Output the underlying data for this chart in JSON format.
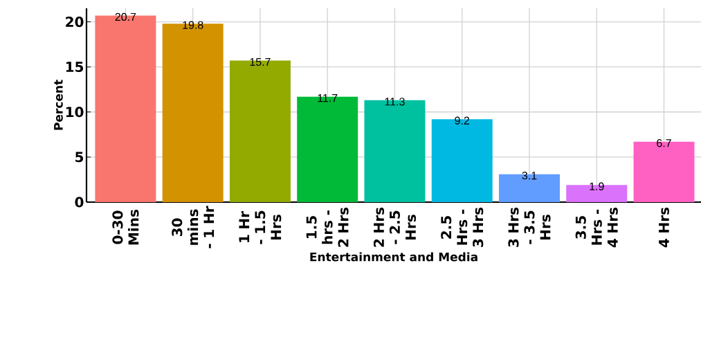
{
  "chart_data": {
    "type": "bar",
    "xlabel": "Entertainment and Media",
    "ylabel": "Percent",
    "categories": [
      "0-30 Mins",
      "30 mins - 1 Hr",
      "1 Hr - 1.5 Hrs",
      "1.5 hrs - 2 Hrs",
      "2 Hrs - 2.5 Hrs",
      "2.5 Hrs - 3 Hrs",
      "3 Hrs - 3.5 Hrs",
      "3.5 Hrs - 4 Hrs",
      "4 Hrs"
    ],
    "values": [
      20.7,
      19.8,
      15.7,
      11.7,
      11.3,
      9.2,
      3.1,
      1.9,
      6.7
    ],
    "colors": [
      "#F8766D",
      "#D39200",
      "#93AA00",
      "#00BA38",
      "#00C19F",
      "#00B9E3",
      "#619CFF",
      "#DB72FB",
      "#FF61C3"
    ],
    "ylim": [
      0,
      21.5
    ],
    "yticks": [
      0,
      5,
      10,
      15,
      20
    ],
    "grid": true,
    "data_labels": true
  }
}
